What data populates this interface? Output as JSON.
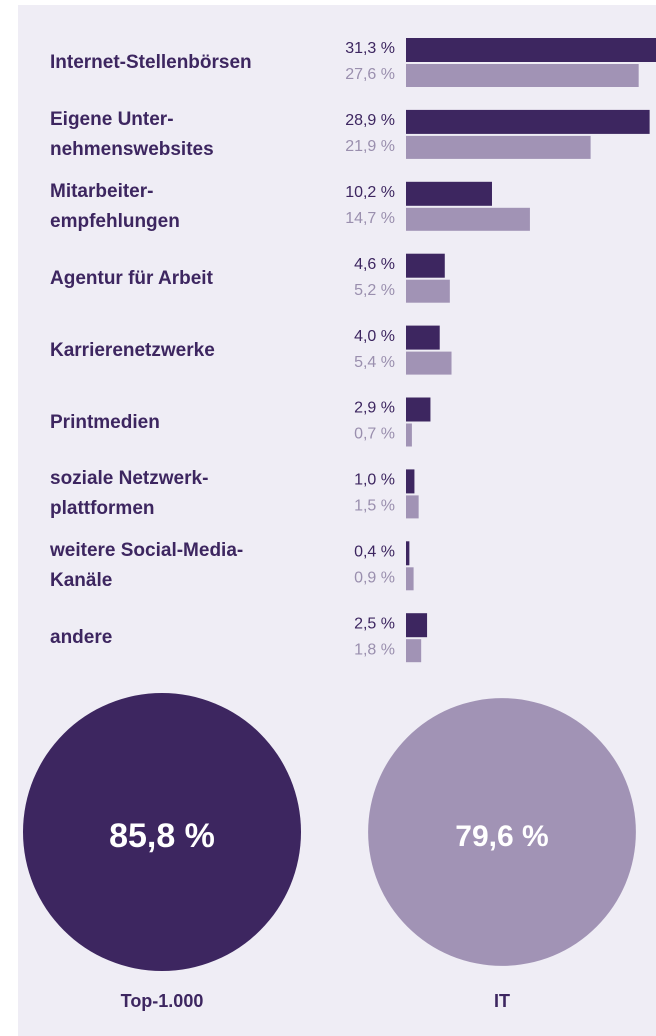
{
  "chart_data": [
    {
      "type": "bar",
      "categories": [
        "Internet-Stellenbörsen",
        "Eigene Unter-\nnehmenswebsites",
        "Mitarbeiter-\nempfehlungen",
        "Agentur für Arbeit",
        "Karrierenetzwerke",
        "Printmedien",
        "soziale Netzwerk-\nplattformen",
        "weitere Social-Media-\nKanäle",
        "andere"
      ],
      "series": [
        {
          "name": "Top-1.000",
          "color": "#3d2660",
          "values": [
            31.3,
            28.9,
            10.2,
            4.6,
            4.0,
            2.9,
            1.0,
            0.4,
            2.5
          ],
          "value_labels": [
            "31,3 %",
            "28,9 %",
            "10,2 %",
            "4,6 %",
            "4,0 %",
            "2,9 %",
            "1,0 %",
            "0,4 %",
            "2,5 %"
          ]
        },
        {
          "name": "IT",
          "color": "#a193b5",
          "values": [
            27.6,
            21.9,
            14.7,
            5.2,
            5.4,
            0.7,
            1.5,
            0.9,
            1.8
          ],
          "value_labels": [
            "27,6 %",
            "21,9 %",
            "14,7 %",
            "5,2 %",
            "5,4 %",
            "0,7 %",
            "1,5 %",
            "0,9 %",
            "1,8 %"
          ]
        }
      ]
    },
    {
      "type": "circle",
      "categories": [
        "Top-1.000",
        "IT"
      ],
      "values": [
        85.8,
        79.6
      ],
      "value_labels": [
        "85,8 %",
        "79,6 %"
      ],
      "colors": [
        "#3d2660",
        "#a193b5"
      ]
    }
  ]
}
